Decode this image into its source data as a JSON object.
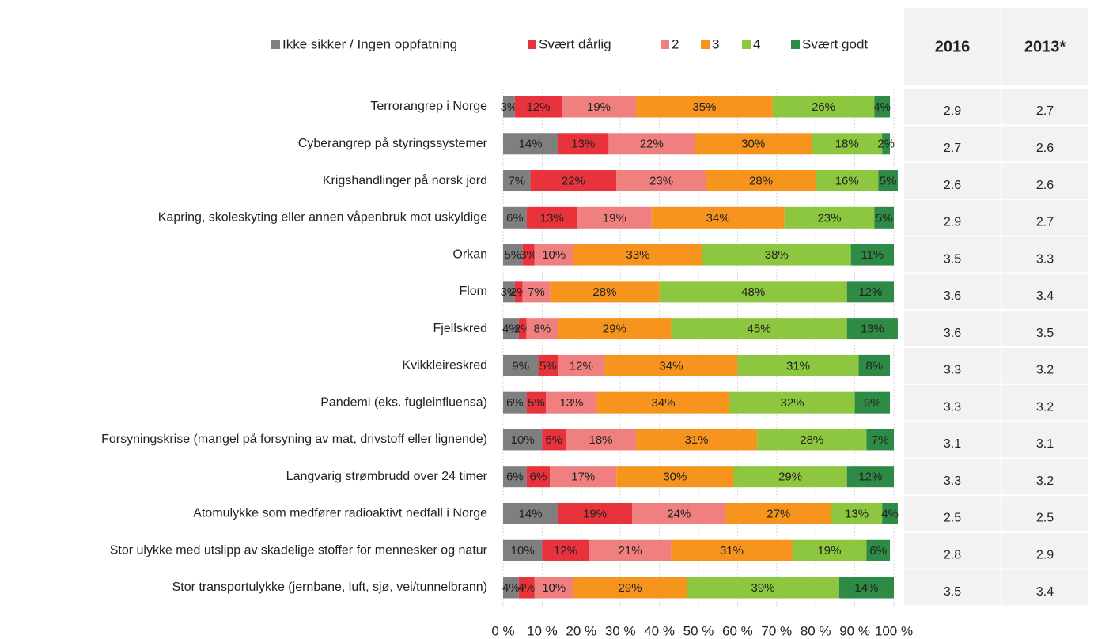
{
  "chart_data": {
    "type": "stacked_barh",
    "categories": [
      "Terrorangrep i Norge",
      "Cyberangrep på styringssystemer",
      "Krigshandlinger på norsk jord",
      "Kapring, skoleskyting eller annen våpenbruk mot uskyldige",
      "Orkan",
      "Flom",
      "Fjellskred",
      "Kvikkleireskred",
      "Pandemi (eks. fugleinfluensa)",
      "Forsyningskrise (mangel på forsyning av mat, drivstoff eller lignende)",
      "Langvarig strømbrudd over 24 timer",
      "Atomulykke som medfører radioaktivt nedfall i Norge",
      "Stor ulykke med utslipp av skadelige stoffer for mennesker og natur",
      "Stor transportulykke (jernbane, luft, sjø, vei/tunnelbrann)"
    ],
    "series": [
      {
        "name": "Ikke sikker / Ingen oppfatning",
        "color": "#7f7f7f",
        "values": [
          3,
          14,
          7,
          6,
          5,
          3,
          4,
          9,
          6,
          10,
          6,
          14,
          10,
          4
        ],
        "value_labels": [
          "3%",
          "14%",
          "7%",
          "6%",
          "5%",
          "3%",
          "4%",
          "9%",
          "6%",
          "10%",
          "6%",
          "14%",
          "10%",
          "4%"
        ]
      },
      {
        "name": "Svært dårlig",
        "color": "#e8323c",
        "values": [
          12,
          13,
          22,
          13,
          3,
          2,
          2,
          5,
          5,
          6,
          6,
          19,
          12,
          4
        ],
        "value_labels": [
          "12%",
          "13%",
          "22%",
          "13%",
          "3%",
          "2%",
          "2%",
          "5%",
          "5%",
          "6%",
          "6%",
          "19%",
          "12%",
          "4%"
        ]
      },
      {
        "name": "2",
        "color": "#f08080",
        "values": [
          19,
          22,
          23,
          19,
          10,
          7,
          8,
          12,
          13,
          18,
          17,
          24,
          21,
          10
        ],
        "value_labels": [
          "19%",
          "22%",
          "23%",
          "19%",
          "10%",
          "7%",
          "8%",
          "12%",
          "13%",
          "18%",
          "17%",
          "24%",
          "21%",
          "10%"
        ]
      },
      {
        "name": "3",
        "color": "#f7941d",
        "values": [
          35,
          30,
          28,
          34,
          33,
          28,
          29,
          34,
          34,
          31,
          30,
          27,
          31,
          29
        ],
        "value_labels": [
          "35%",
          "30%",
          "28%",
          "34%",
          "33%",
          "28%",
          "29%",
          "34%",
          "34%",
          "31%",
          "30%",
          "27%",
          "31%",
          "29%"
        ]
      },
      {
        "name": "4",
        "color": "#8dc63f",
        "values": [
          26,
          18,
          16,
          23,
          38,
          48,
          45,
          31,
          32,
          28,
          29,
          13,
          19,
          39
        ],
        "value_labels": [
          "26%",
          "18%",
          "16%",
          "23%",
          "38%",
          "48%",
          "45%",
          "31%",
          "32%",
          "28%",
          "29%",
          "13%",
          "19%",
          "39%"
        ]
      },
      {
        "name": "Svært godt",
        "color": "#2e8b45",
        "values": [
          4,
          2,
          5,
          5,
          11,
          12,
          13,
          8,
          9,
          7,
          12,
          4,
          6,
          14
        ],
        "value_labels": [
          "4%",
          "2%",
          "5%",
          "5%",
          "11%",
          "12%",
          "13%",
          "8%",
          "9%",
          "7%",
          "12%",
          "4%",
          "6%",
          "14%"
        ]
      }
    ],
    "xlim": [
      0,
      100
    ],
    "xticks": [
      {
        "value": 0,
        "label": "0 %"
      },
      {
        "value": 10,
        "label": "10 %"
      },
      {
        "value": 20,
        "label": "20 %"
      },
      {
        "value": 30,
        "label": "30 %"
      },
      {
        "value": 40,
        "label": "40 %"
      },
      {
        "value": 50,
        "label": "50 %"
      },
      {
        "value": 60,
        "label": "60 %"
      },
      {
        "value": 70,
        "label": "70 %"
      },
      {
        "value": 80,
        "label": "80 %"
      },
      {
        "value": 90,
        "label": "90 %"
      },
      {
        "value": 100,
        "label": "100 %"
      }
    ],
    "grid": true,
    "legend": "top",
    "table": {
      "columns": [
        "2016",
        "2013*"
      ],
      "rows": [
        [
          2.9,
          2.7
        ],
        [
          2.7,
          2.6
        ],
        [
          2.6,
          2.6
        ],
        [
          2.9,
          2.7
        ],
        [
          3.5,
          3.3
        ],
        [
          3.6,
          3.4
        ],
        [
          3.6,
          3.5
        ],
        [
          3.3,
          3.2
        ],
        [
          3.3,
          3.2
        ],
        [
          3.1,
          3.1
        ],
        [
          3.3,
          3.2
        ],
        [
          2.5,
          2.5
        ],
        [
          2.8,
          2.9
        ],
        [
          3.5,
          3.4
        ]
      ]
    }
  }
}
